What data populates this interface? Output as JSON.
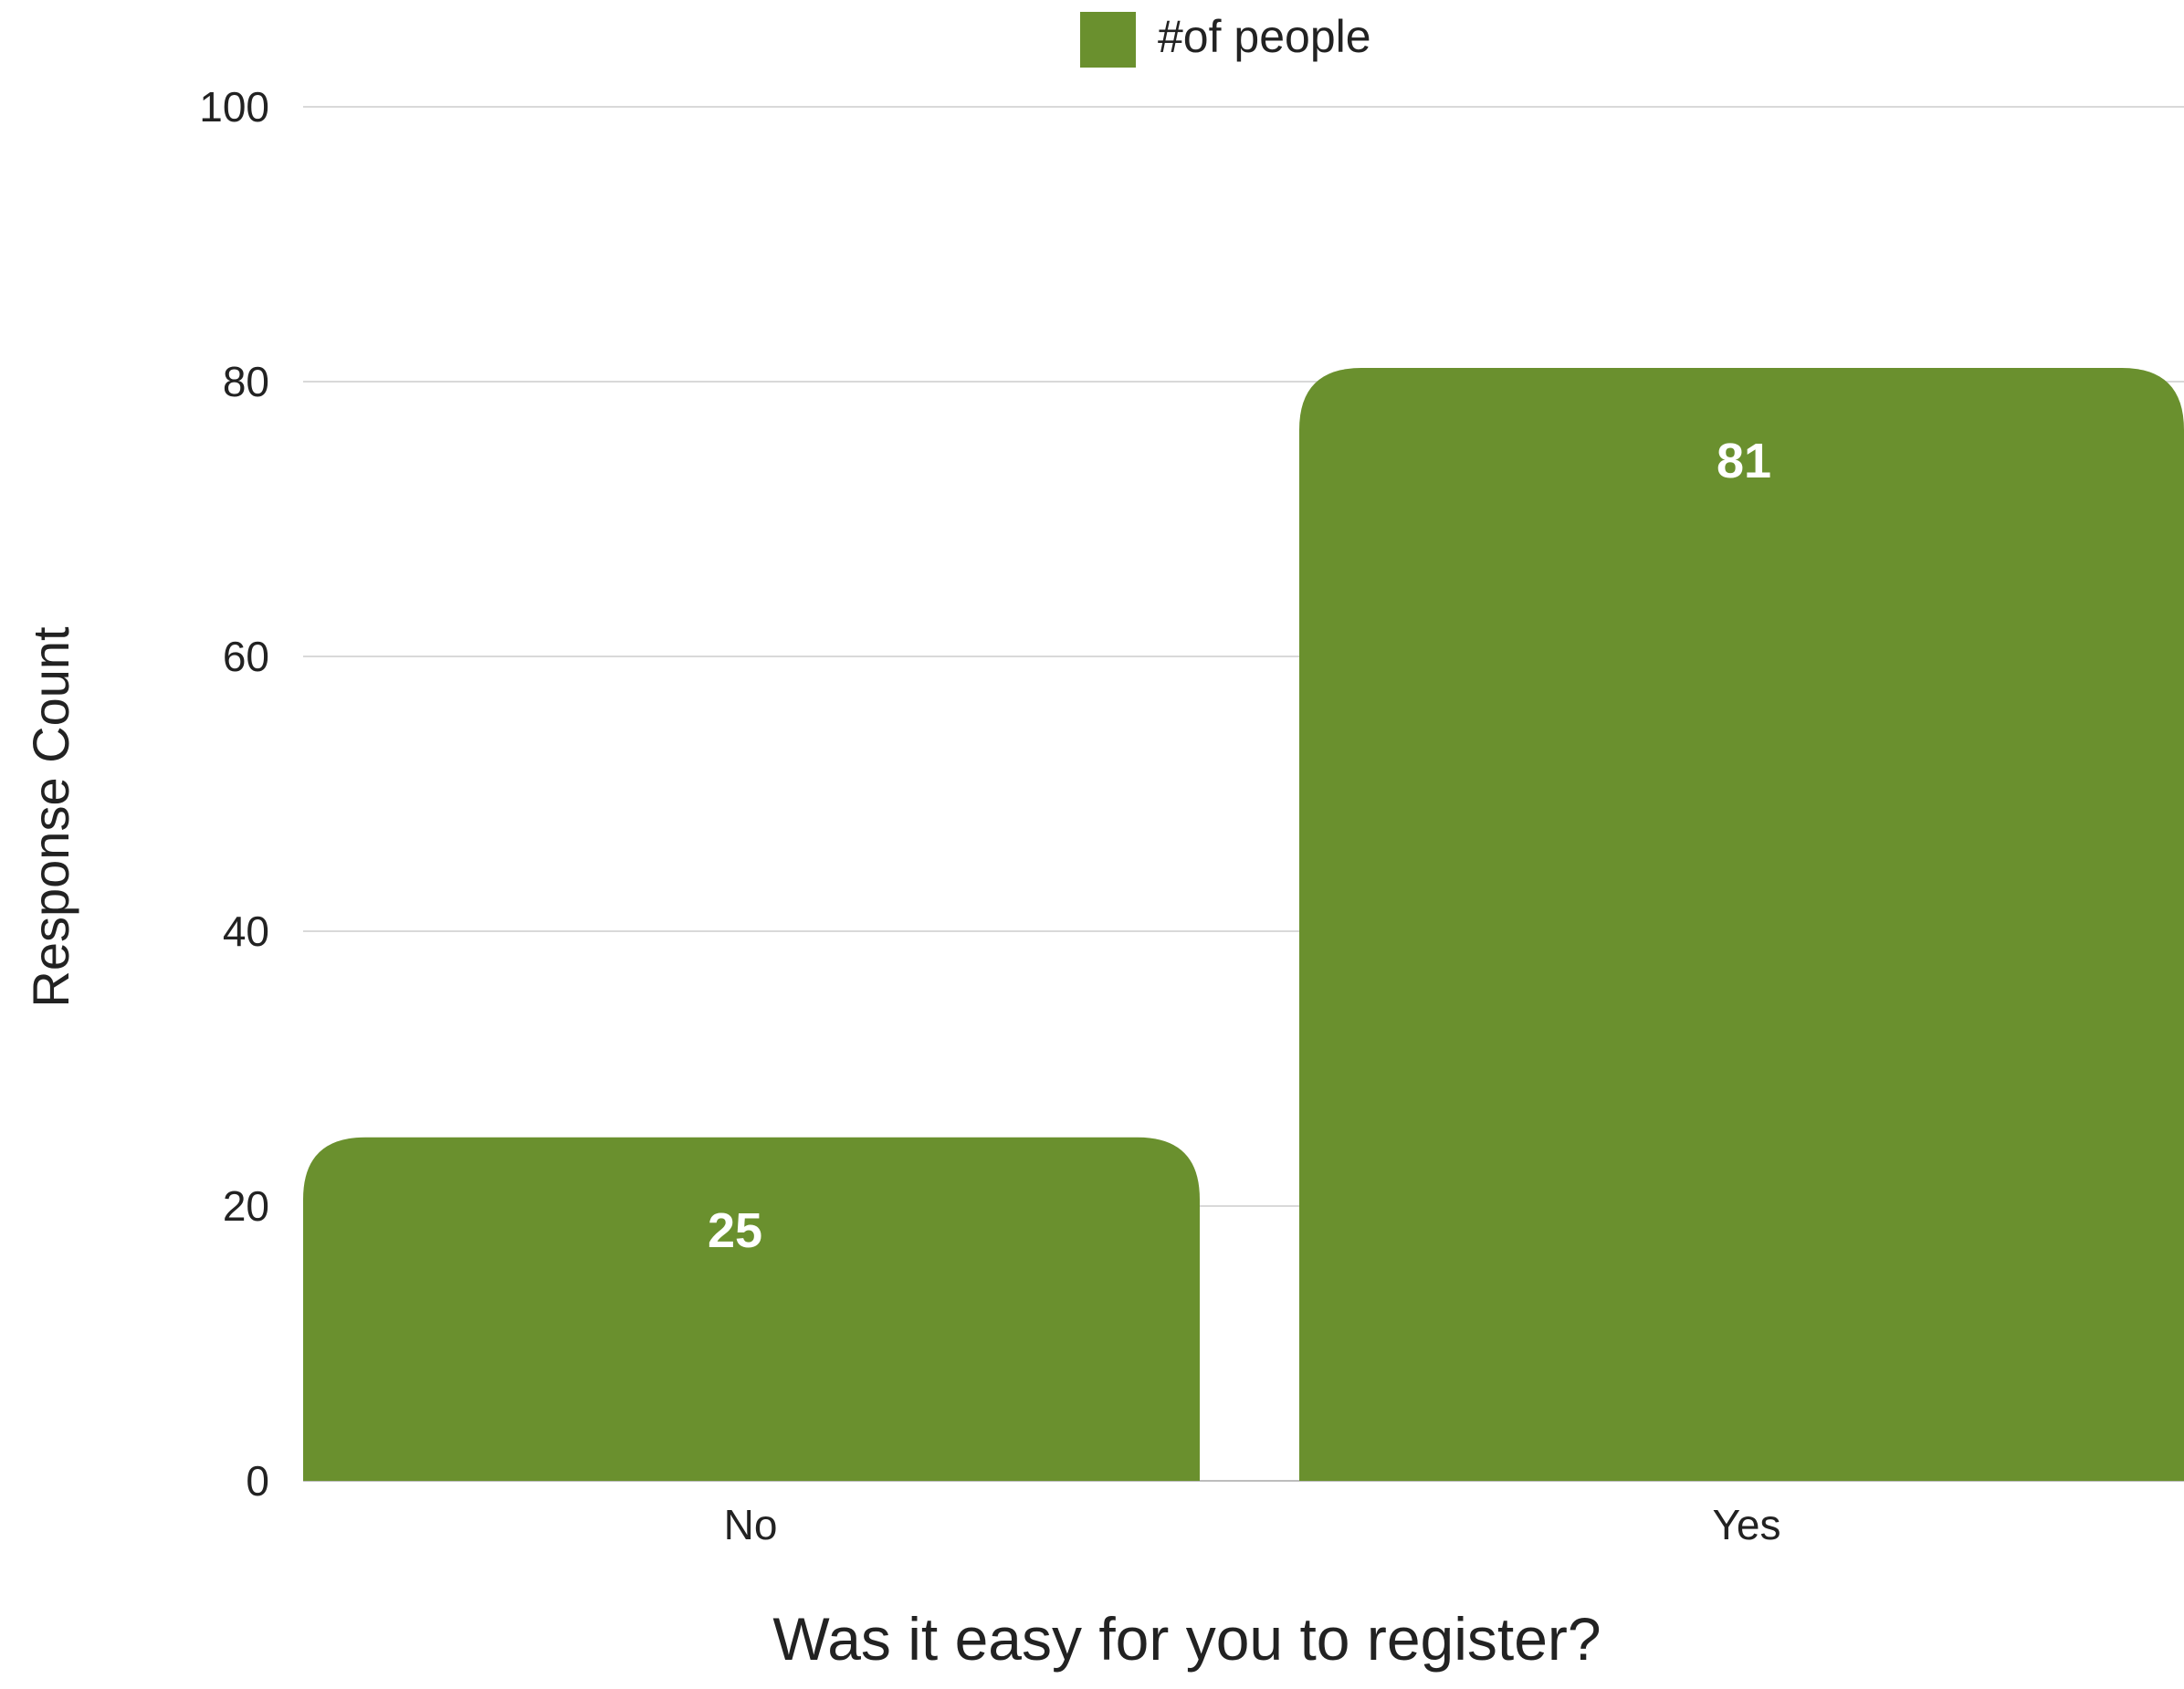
{
  "chart_data": {
    "type": "bar",
    "title": "",
    "categories": [
      "No",
      "Yes"
    ],
    "series": [
      {
        "name": "#of people",
        "values": [
          25,
          81
        ],
        "data_labels": [
          "25",
          "81"
        ],
        "color": "#6a902e"
      }
    ],
    "xlabel": "Was it easy for you to register?",
    "ylabel": "Response Count",
    "ylim": [
      0,
      100
    ],
    "yticks": [
      "0",
      "20",
      "40",
      "60",
      "80",
      "100"
    ],
    "grid": true,
    "legend": "top-center"
  },
  "colors": {
    "bar": "#6a902e",
    "grid": "#d9d9d9",
    "axis_text": "#222222",
    "label_text": "#ffffff"
  }
}
